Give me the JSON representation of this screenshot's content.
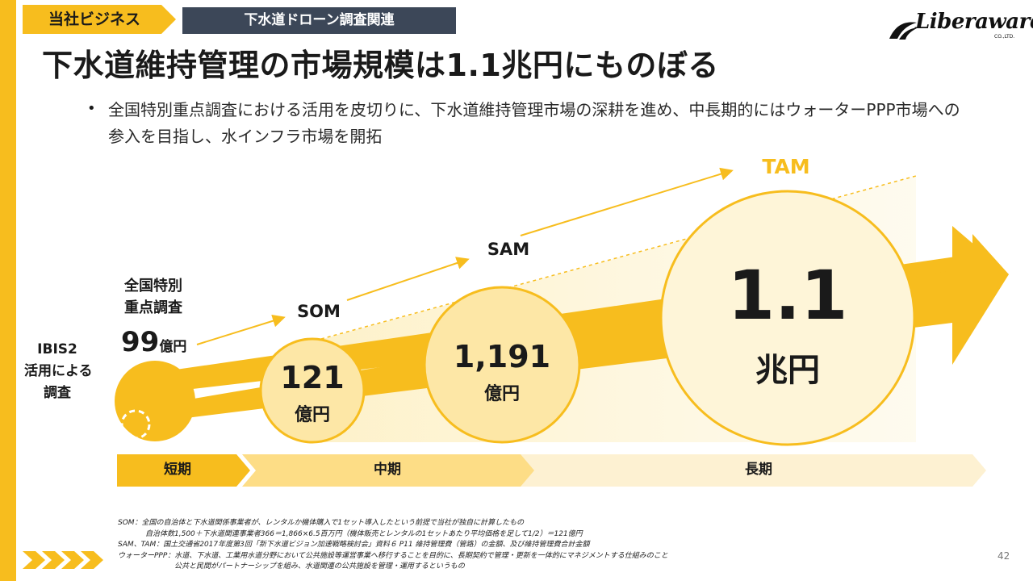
{
  "header": {
    "section_tag": "当社ビジネス",
    "topic_tag": "下水道ドローン調査関連",
    "logo_text": "Liberaware",
    "logo_sub": "CO.,LTD.",
    "title": "下水道維持管理の市場規模は1.1兆円にものぼる"
  },
  "bullet": {
    "text": "全国特別重点調査における活用を皮切りに、下水道維持管理市場の深耕を進め、中長期的にはウォーターPPP市場への参入を目指し、水インフラ市場を開拓"
  },
  "diagram": {
    "ibis_label_l1": "IBIS2",
    "ibis_label_l2": "活用による",
    "ibis_label_l3": "調査",
    "special_l1": "全国特別",
    "special_l2": "重点調査",
    "special_value": "99",
    "special_unit": "億円",
    "som": {
      "label": "SOM",
      "value": "121",
      "unit": "億円"
    },
    "sam": {
      "label": "SAM",
      "value": "1,191",
      "unit": "億円"
    },
    "tam": {
      "label": "TAM",
      "value": "1.1",
      "unit": "兆円"
    },
    "stages": {
      "short": "短期",
      "mid": "中期",
      "long": "長期"
    }
  },
  "notes": {
    "line1": "SOM：全国の自治体と下水道関係事業者が、レンタルか機体購入で1セット導入したという前提で当社が独自に計算したもの",
    "line2": "自治体数1,500＋下水道関連事業者366＝1,866×6.5百万円（機体販売とレンタルの1セットあたり平均価格を足して1/2）＝121億円",
    "line3": "SAM、TAM：国土交通省2017年度第3回「新下水道ビジョン加速戦略検討会」資料６ P11 維持管理費（管路）の金額、及び維持管理費合計金額",
    "line4": "ウォーターPPP：水道、下水道、工業用水道分野において公共施設等運営事業へ移行することを目的に、長期契約で管理・更新を一体的にマネジメントする仕組みのこと",
    "line5": "公共と民間がパートナーシップを組み、水道関連の公共施設を管理・運用するというもの"
  },
  "page_number": "42",
  "colors": {
    "accent": "#f7bd1e",
    "dark_tag": "#3c4758",
    "circle_fill": "#fde7a6"
  }
}
